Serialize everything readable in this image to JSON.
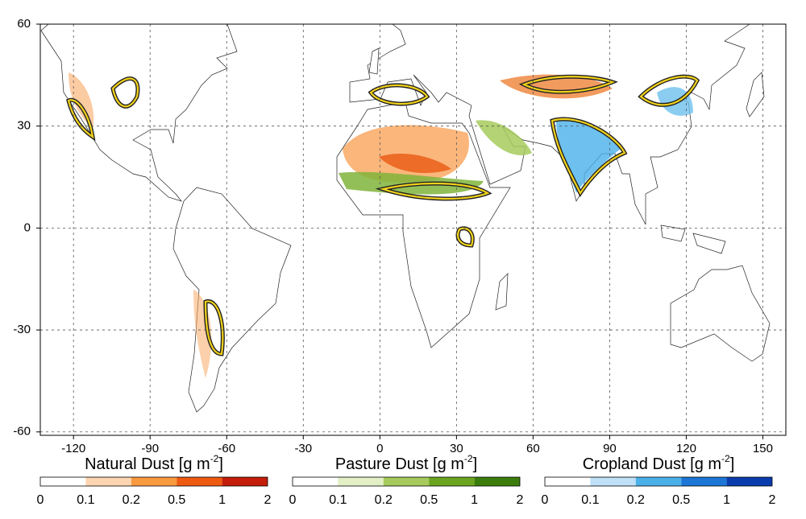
{
  "map": {
    "xlim": [
      -133,
      159
    ],
    "ylim": [
      -61,
      60
    ],
    "xticks": [
      -120,
      -90,
      -60,
      -30,
      0,
      30,
      60,
      90,
      120,
      150
    ],
    "yticks": [
      60,
      30,
      0,
      -30,
      -60
    ],
    "grid": true
  },
  "colorbars": [
    {
      "title_parts": [
        "Natural Dust [g m",
        "-2",
        "]"
      ],
      "ticks": [
        0,
        0.1,
        0.2,
        0.5,
        1,
        2
      ],
      "colors": [
        "#ffffff",
        "#fdd5b0",
        "#f99a3e",
        "#ee5a10",
        "#c41e0a"
      ]
    },
    {
      "title_parts": [
        "Pasture Dust [g m",
        "-2",
        "]"
      ],
      "ticks": [
        0,
        0.1,
        0.2,
        0.5,
        1,
        2
      ],
      "colors": [
        "#ffffff",
        "#e3efc4",
        "#a6cb5c",
        "#6ba51f",
        "#3b7d0b"
      ]
    },
    {
      "title_parts": [
        "Cropland Dust [g m",
        "-2",
        "]"
      ],
      "ticks": [
        0,
        0.1,
        0.2,
        0.5,
        1,
        2
      ],
      "colors": [
        "#ffffff",
        "#bfe0f7",
        "#4ab0ea",
        "#1c76d6",
        "#0a3cae"
      ]
    }
  ]
}
